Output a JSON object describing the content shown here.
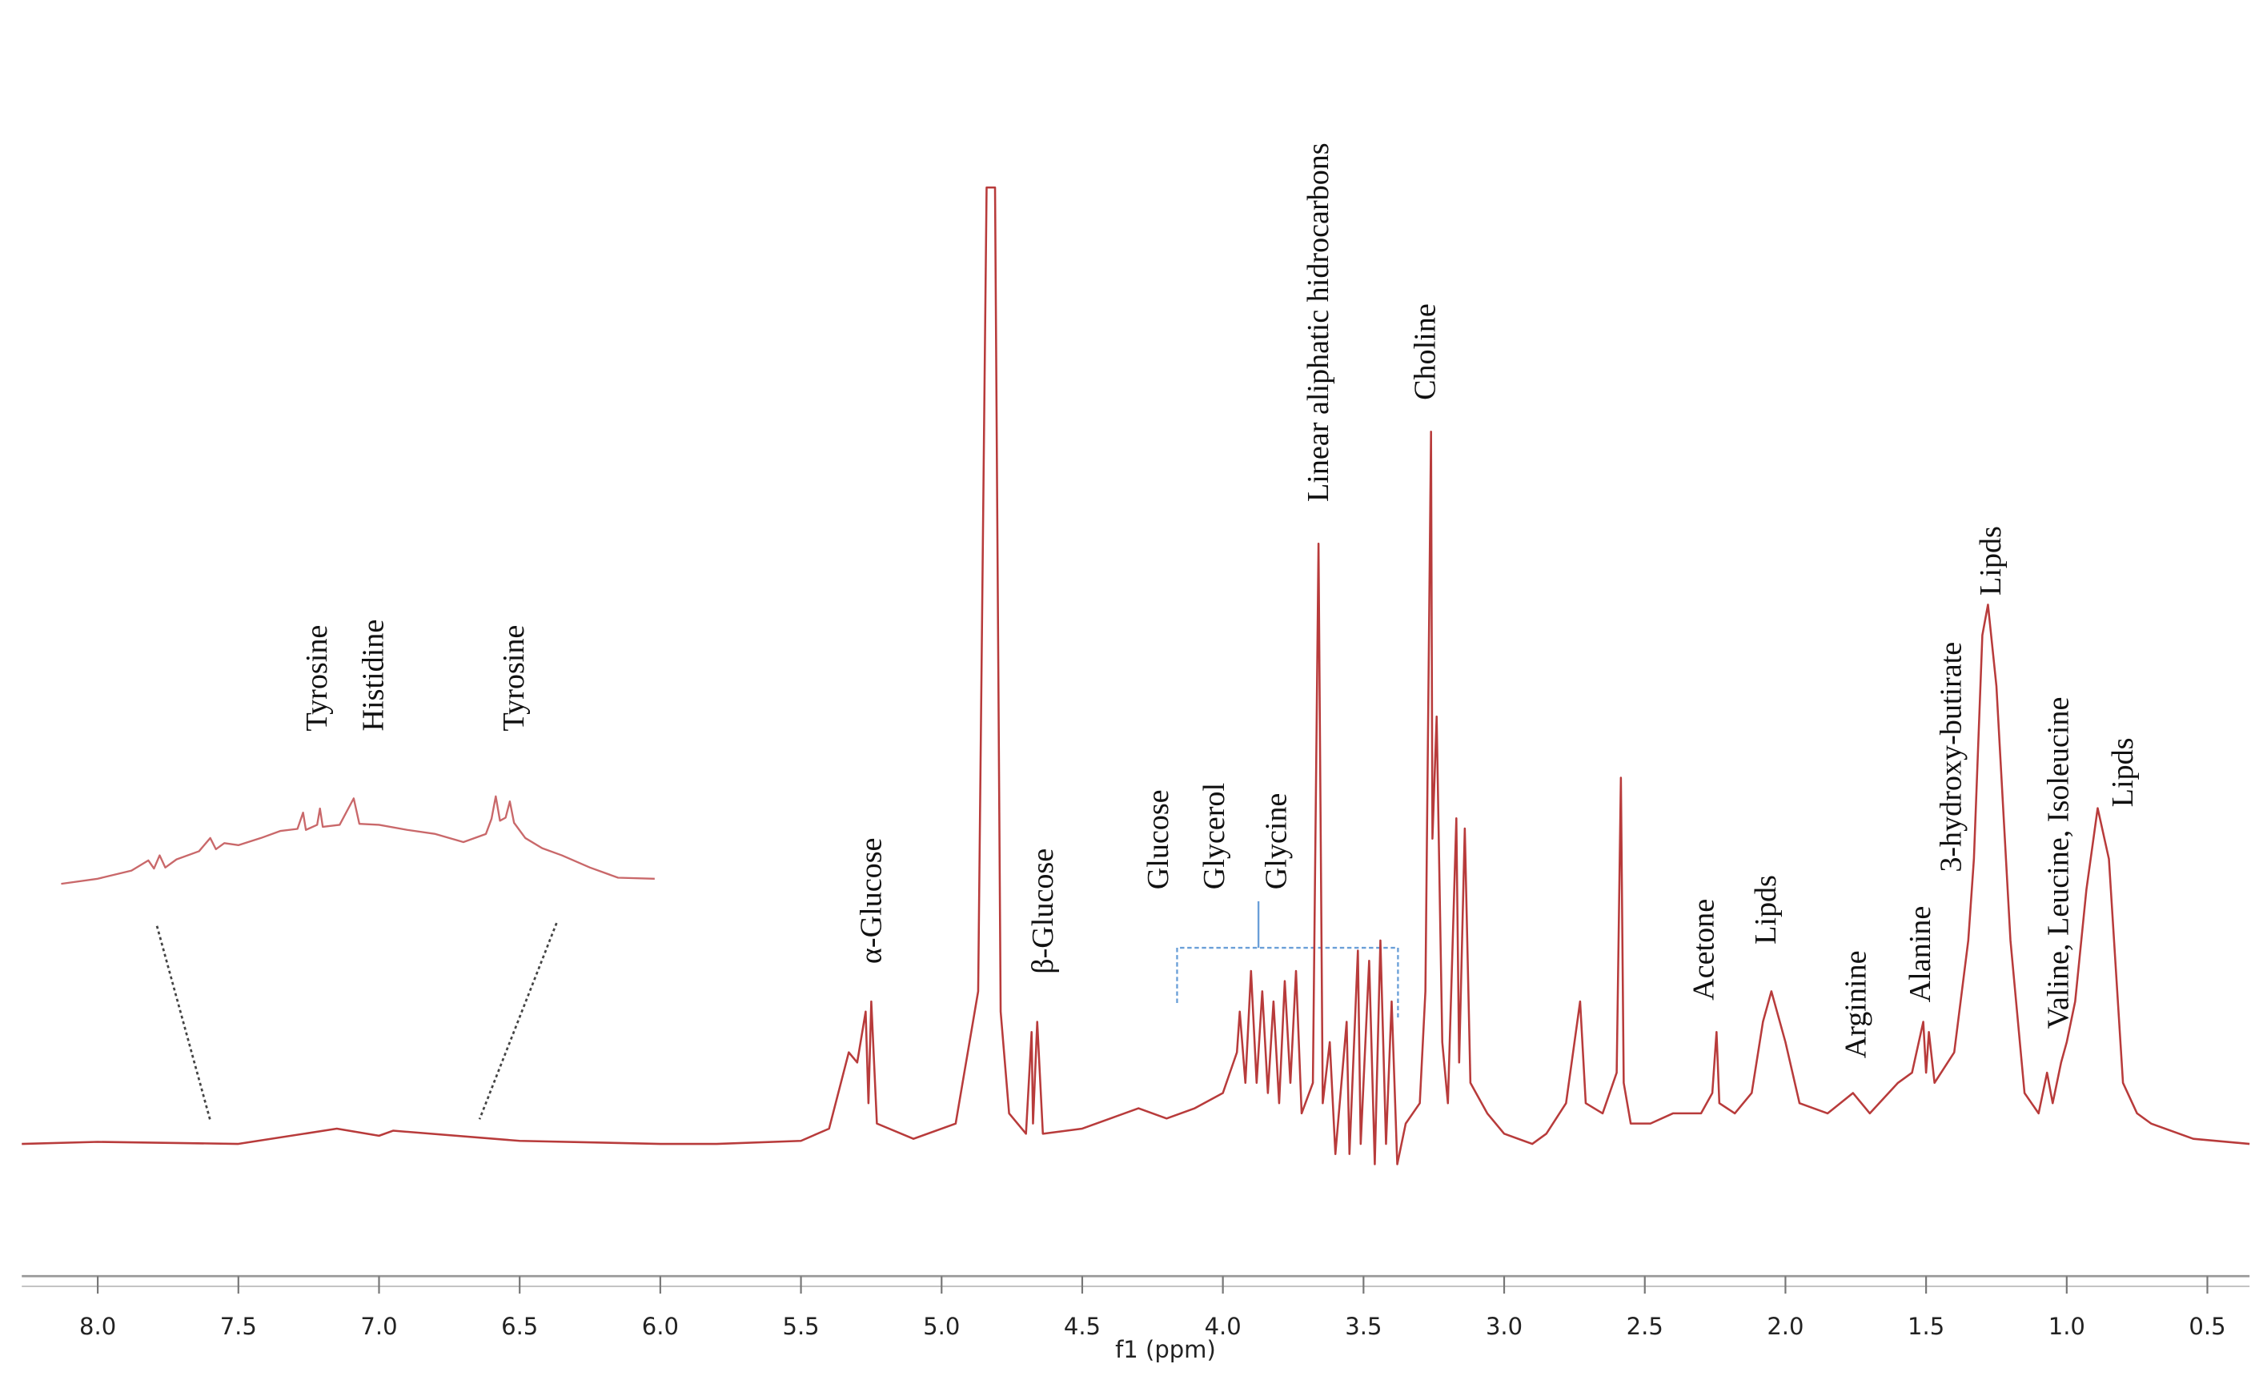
{
  "chart_data": {
    "type": "line",
    "color": "#b83b3b",
    "xlim": [
      8.27,
      0.35
    ],
    "ylim": [
      -13,
      112.4
    ],
    "xticks": [
      {
        "value": 8,
        "label": "8.0"
      },
      7.5,
      {
        "value": 7,
        "label": "7.0"
      },
      6.5,
      {
        "value": 6,
        "label": "6.0"
      },
      5.5,
      {
        "value": 5,
        "label": "5.0"
      },
      4.5,
      {
        "value": 4,
        "label": "4.0"
      },
      3.5,
      {
        "value": 3,
        "label": "3.0"
      },
      2.5,
      {
        "value": 2,
        "label": "2.0"
      },
      1.5,
      {
        "value": 1,
        "label": "1.0"
      },
      0.5
    ],
    "xlabel": "f1 (ppm)",
    "x": [
      8.27,
      8.0,
      7.5,
      7.15,
      7.0,
      6.95,
      6.5,
      6.0,
      5.8,
      5.5,
      5.4,
      5.33,
      5.3,
      5.27,
      5.26,
      5.25,
      5.23,
      5.1,
      4.95,
      4.87,
      4.84,
      4.81,
      4.79,
      4.76,
      4.7,
      4.68,
      4.675,
      4.66,
      4.64,
      4.5,
      4.3,
      4.2,
      4.1,
      4.0,
      3.95,
      3.94,
      3.92,
      3.9,
      3.88,
      3.86,
      3.84,
      3.82,
      3.8,
      3.78,
      3.76,
      3.74,
      3.72,
      3.68,
      3.66,
      3.645,
      3.62,
      3.6,
      3.56,
      3.55,
      3.52,
      3.51,
      3.48,
      3.46,
      3.44,
      3.42,
      3.4,
      3.38,
      3.35,
      3.3,
      3.28,
      3.26,
      3.255,
      3.24,
      3.22,
      3.2,
      3.17,
      3.16,
      3.14,
      3.12,
      3.1,
      3.06,
      3.0,
      2.9,
      2.85,
      2.78,
      2.73,
      2.71,
      2.65,
      2.6,
      2.585,
      2.575,
      2.55,
      2.48,
      2.4,
      2.3,
      2.26,
      2.245,
      2.235,
      2.18,
      2.12,
      2.08,
      2.05,
      2.03,
      2.0,
      1.95,
      1.85,
      1.76,
      1.7,
      1.6,
      1.55,
      1.51,
      1.5,
      1.49,
      1.47,
      1.4,
      1.35,
      1.33,
      1.3,
      1.28,
      1.25,
      1.2,
      1.15,
      1.1,
      1.07,
      1.05,
      1.02,
      1.0,
      0.97,
      0.93,
      0.89,
      0.85,
      0.8,
      0.75,
      0.7,
      0.55,
      0.35
    ],
    "values": [
      0,
      0.2,
      0,
      1.5,
      0.8,
      1.3,
      0.3,
      0,
      0,
      0.3,
      1.5,
      9,
      8,
      13,
      4,
      14,
      2,
      0.5,
      2,
      15,
      94,
      94,
      13,
      3,
      1,
      11,
      2,
      12,
      1,
      1.5,
      3.5,
      2.5,
      3.5,
      5,
      9,
      13,
      6,
      17,
      6,
      15,
      5,
      14,
      4,
      16,
      6,
      17,
      3,
      6,
      59,
      4,
      10,
      -1,
      12,
      -1,
      19,
      0,
      18,
      -2,
      20,
      0,
      14,
      -2,
      2,
      4,
      15,
      70,
      30,
      42,
      10,
      4,
      32,
      8,
      31,
      6,
      5,
      3,
      1,
      0,
      1,
      4,
      14,
      4,
      3,
      7,
      36,
      6,
      2,
      2,
      3,
      3,
      5,
      11,
      4,
      3,
      5,
      12,
      15,
      13,
      10,
      4,
      3,
      5,
      3,
      6,
      7,
      12,
      7,
      11,
      6,
      9,
      20,
      28,
      50,
      53,
      45,
      20,
      5,
      3,
      7,
      4,
      8,
      10,
      14,
      25,
      33,
      28,
      6,
      3,
      2,
      0.5,
      0
    ],
    "annotations": [
      {
        "text": "α-Glucose",
        "x": 5.25,
        "y": 17.7
      },
      {
        "text": "β-Glucose",
        "x": 4.64,
        "y": 16.7
      },
      {
        "text": "Glucose",
        "x": 4.23,
        "y": 25
      },
      {
        "text": "Glycerol",
        "x": 4.03,
        "y": 25
      },
      {
        "text": "Glycine",
        "x": 3.81,
        "y": 25
      },
      {
        "text": "Linear aliphatic hidrocarbons",
        "x": 3.66,
        "y": 63.1
      },
      {
        "text": "Choline",
        "x": 3.28,
        "y": 73.1
      },
      {
        "text": "Acetone",
        "x": 2.29,
        "y": 14.1
      },
      {
        "text": "Lipds",
        "x": 2.07,
        "y": 19.6
      },
      {
        "text": "Arginine",
        "x": 1.75,
        "y": 8.4
      },
      {
        "text": "Alanine",
        "x": 1.52,
        "y": 13.9
      },
      {
        "text": "3-hydroxy-butirate",
        "x": 1.41,
        "y": 26.7
      },
      {
        "text": "Lipds",
        "x": 1.27,
        "y": 53.9
      },
      {
        "text": "Valine, Leucine, Isoleucine",
        "x": 1.03,
        "y": 11.3
      },
      {
        "text": "Lipds",
        "x": 0.8,
        "y": 33.1
      }
    ],
    "inset": {
      "color": "#c9686a",
      "x": [
        8.13,
        8.0,
        7.88,
        7.82,
        7.8,
        7.78,
        7.76,
        7.72,
        7.64,
        7.6,
        7.58,
        7.55,
        7.5,
        7.42,
        7.35,
        7.29,
        7.27,
        7.26,
        7.22,
        7.21,
        7.2,
        7.14,
        7.09,
        7.07,
        7.0,
        6.9,
        6.8,
        6.7,
        6.62,
        6.6,
        6.585,
        6.57,
        6.55,
        6.535,
        6.52,
        6.48,
        6.42,
        6.35,
        6.25,
        6.15,
        6.02
      ],
      "values": [
        0,
        0.5,
        1.3,
        2.3,
        1.5,
        2.8,
        1.6,
        2.4,
        3.2,
        4.5,
        3.4,
        4,
        3.8,
        4.5,
        5.2,
        5.4,
        7,
        5.3,
        5.8,
        7.4,
        5.6,
        5.8,
        8.4,
        5.9,
        5.8,
        5.3,
        4.9,
        4.1,
        4.9,
        6.4,
        8.6,
        6.2,
        6.5,
        8.1,
        6,
        4.5,
        3.5,
        2.8,
        1.6,
        0.6,
        0.5
      ],
      "annotations": [
        {
          "text": "Tyrosine",
          "x": 7.22,
          "y": 15
        },
        {
          "text": "Histidine",
          "x": 7.02,
          "y": 15
        },
        {
          "text": "Tyrosine",
          "x": 6.52,
          "y": 15
        }
      ]
    }
  }
}
